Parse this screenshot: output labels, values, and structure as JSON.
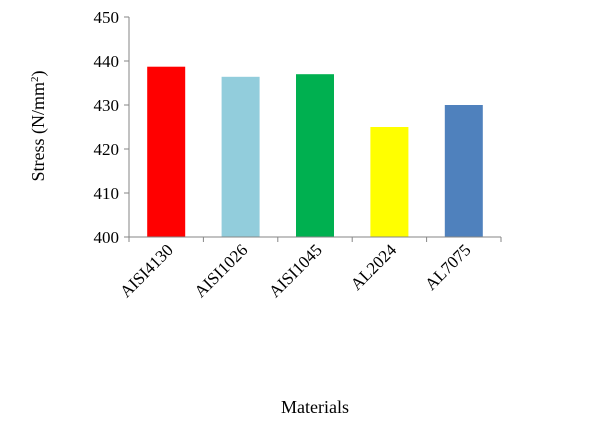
{
  "chart_data": {
    "type": "bar",
    "title": "",
    "xlabel": "Materials",
    "ylabel": "Stress (N/mm",
    "ylabel_superscript": "2",
    "ylabel_suffix": ")",
    "categories": [
      "AISI4130",
      "AISI1026",
      "AISI1045",
      "AL2024",
      "AL7075"
    ],
    "values": [
      438.7,
      436.4,
      437.0,
      425.0,
      430.0
    ],
    "colors": [
      "#ff0000",
      "#92cddc",
      "#00b050",
      "#ffff00",
      "#4f81bd"
    ],
    "ylim": [
      400,
      450
    ],
    "yticks": [
      400,
      410,
      420,
      430,
      440,
      450
    ],
    "grid": false,
    "legend": "none"
  }
}
